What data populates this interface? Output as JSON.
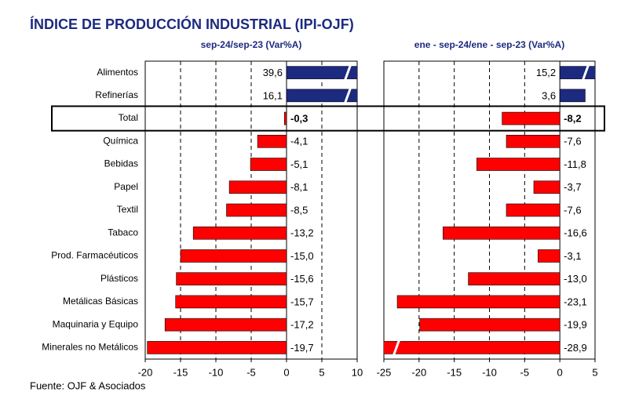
{
  "title": "ÍNDICE DE PRODUCCIÓN INDUSTRIAL (IPI-OJF)",
  "source": "Fuente: OJF & Asociados",
  "chart_data": [
    {
      "type": "bar",
      "orientation": "horizontal",
      "title": "sep-24/sep-23  (Var%A)",
      "categories": [
        "Alimentos",
        "Refinerías",
        "Total",
        "Química",
        "Bebidas",
        "Papel",
        "Textil",
        "Tabaco",
        "Prod. Farmacéuticos",
        "Plásticos",
        "Metálicas Básicas",
        "Maquinaria y Equipo",
        "Minerales no Metálicos"
      ],
      "values": [
        39.6,
        16.1,
        -0.3,
        -4.1,
        -5.1,
        -8.1,
        -8.5,
        -13.2,
        -15.0,
        -15.6,
        -15.7,
        -17.2,
        -19.7
      ],
      "value_labels": [
        "39,6",
        "16,1",
        "-0,3",
        "-4,1",
        "-5,1",
        "-8,1",
        "-8,5",
        "-13,2",
        "-15,0",
        "-15,6",
        "-15,7",
        "-17,2",
        "-19,7"
      ],
      "xlim": [
        -20,
        10
      ],
      "xticks": [
        -20,
        -15,
        -10,
        -5,
        0,
        5,
        10
      ],
      "positive_color": "#1c2a80",
      "negative_color": "#ff0000",
      "grid": true
    },
    {
      "type": "bar",
      "orientation": "horizontal",
      "title": "ene - sep-24/ene - sep-23  (Var%A)",
      "values": [
        15.2,
        3.6,
        -8.2,
        -7.6,
        -11.8,
        -3.7,
        -7.6,
        -16.6,
        -3.1,
        -13.0,
        -23.1,
        -19.9,
        -28.9
      ],
      "value_labels": [
        "15,2",
        "3,6",
        "-8,2",
        "-7,6",
        "-11,8",
        "-3,7",
        "-7,6",
        "-16,6",
        "-3,1",
        "-13,0",
        "-23,1",
        "-19,9",
        "-28,9"
      ],
      "xlim": [
        -25,
        5
      ],
      "xticks": [
        -25,
        -20,
        -15,
        -10,
        -5,
        0,
        5
      ],
      "positive_color": "#1c2a80",
      "negative_color": "#ff0000",
      "grid": true
    }
  ]
}
